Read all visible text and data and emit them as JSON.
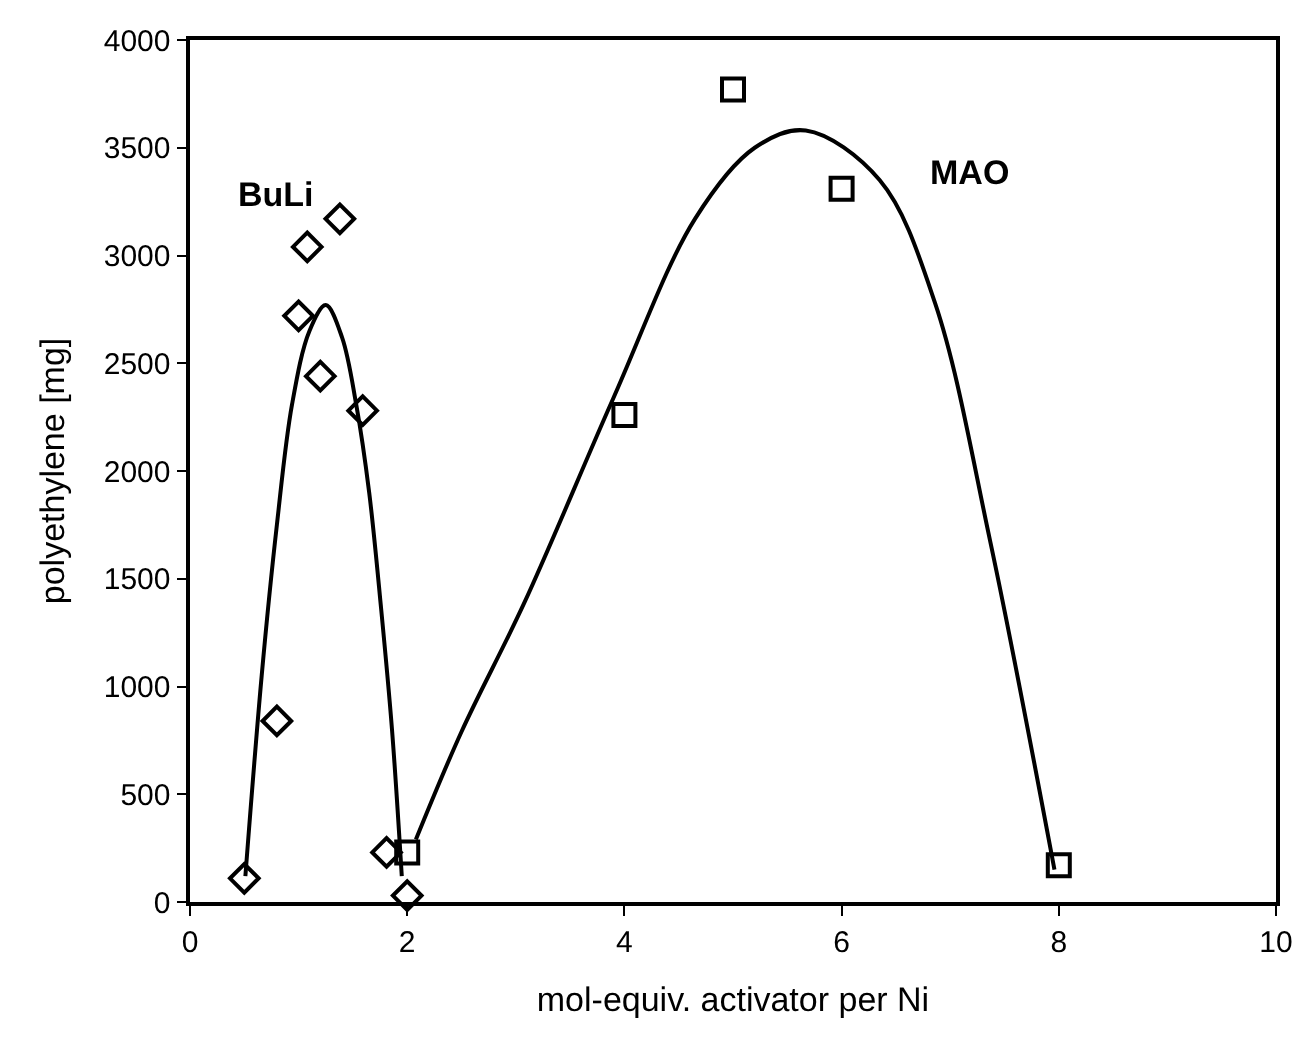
{
  "chart_data": {
    "type": "scatter",
    "xlabel": "mol-equiv. activator per Ni",
    "ylabel": "polyethylene [mg]",
    "xlim": [
      0,
      10
    ],
    "xticks": [
      0,
      2,
      4,
      6,
      8,
      10
    ],
    "ylim": [
      0,
      4000
    ],
    "yticks": [
      0,
      500,
      1000,
      1500,
      2000,
      2500,
      3000,
      3500,
      4000
    ],
    "grid": false,
    "legend": false,
    "series": [
      {
        "type": "line",
        "color": "#000000",
        "marker": "none",
        "line_style": "solid",
        "x": [
          0.51,
          0.66,
          0.8,
          0.94,
          1.1,
          1.25,
          1.4,
          1.53,
          1.65,
          1.76,
          1.86,
          1.95
        ],
        "values": [
          120,
          1050,
          1750,
          2310,
          2650,
          2770,
          2620,
          2310,
          1900,
          1360,
          800,
          120
        ]
      },
      {
        "type": "line",
        "color": "#000000",
        "marker": "none",
        "line_style": "solid",
        "x": [
          2.08,
          2.5,
          3.08,
          3.9,
          4.65,
          5.2,
          5.67,
          6.35,
          6.86,
          7.37,
          7.96
        ],
        "values": [
          290,
          790,
          1390,
          2340,
          3170,
          3500,
          3580,
          3350,
          2780,
          1670,
          150
        ]
      },
      {
        "name": "BuLi",
        "color": "#000000",
        "marker": "diamond",
        "x": [
          0.5,
          0.8,
          1.0,
          1.08,
          1.2,
          1.38,
          1.59,
          1.81,
          2.0
        ],
        "values": [
          110,
          840,
          2720,
          3040,
          2440,
          3170,
          2280,
          230,
          30
        ]
      },
      {
        "name": "MAO",
        "color": "#000000",
        "marker": "square",
        "x": [
          2,
          4,
          5,
          6,
          8
        ],
        "values": [
          230,
          2260,
          3770,
          3310,
          170
        ]
      }
    ]
  }
}
